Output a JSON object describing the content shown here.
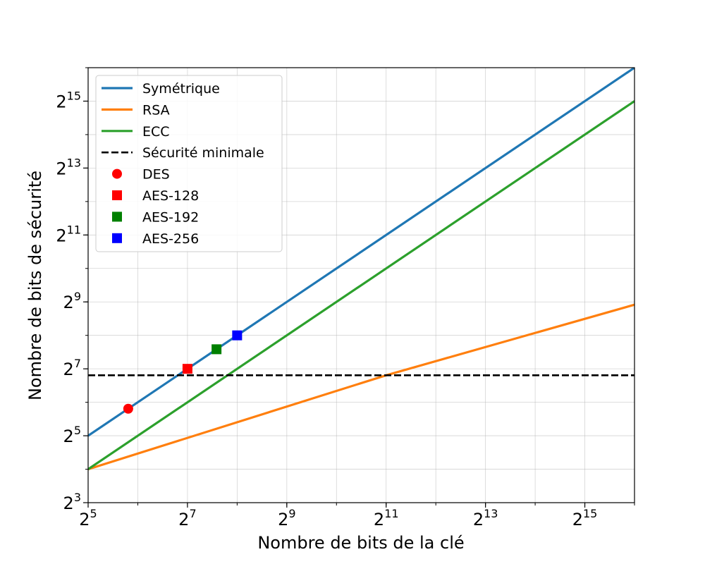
{
  "chart_data": {
    "type": "line",
    "xlabel": "Nombre de bits de la clé",
    "ylabel": "Nombre de bits de sécurité",
    "x_scale": "log2",
    "y_scale": "log2",
    "xlim": [
      32,
      65536
    ],
    "ylim": [
      8,
      65536
    ],
    "x_major_ticks": [
      {
        "base": "2",
        "exp": "5",
        "value": 32
      },
      {
        "base": "2",
        "exp": "7",
        "value": 128
      },
      {
        "base": "2",
        "exp": "9",
        "value": 512
      },
      {
        "base": "2",
        "exp": "11",
        "value": 2048
      },
      {
        "base": "2",
        "exp": "13",
        "value": 8192
      },
      {
        "base": "2",
        "exp": "15",
        "value": 32768
      }
    ],
    "y_major_ticks": [
      {
        "base": "2",
        "exp": "3",
        "value": 8
      },
      {
        "base": "2",
        "exp": "5",
        "value": 32
      },
      {
        "base": "2",
        "exp": "7",
        "value": 128
      },
      {
        "base": "2",
        "exp": "9",
        "value": 512
      },
      {
        "base": "2",
        "exp": "11",
        "value": 2048
      },
      {
        "base": "2",
        "exp": "13",
        "value": 8192
      },
      {
        "base": "2",
        "exp": "15",
        "value": 32768
      }
    ],
    "grid": true,
    "legend_position": "top-left",
    "series": [
      {
        "name": "Symétrique",
        "kind": "line",
        "color": "#1f77b4",
        "dash": "solid",
        "x": [
          32,
          65536
        ],
        "y": [
          32,
          65536
        ]
      },
      {
        "name": "RSA",
        "kind": "line",
        "color": "#ff7f0e",
        "dash": "solid",
        "x": [
          32,
          2048,
          65536
        ],
        "y": [
          16,
          112,
          483
        ]
      },
      {
        "name": "ECC",
        "kind": "line",
        "color": "#2ca02c",
        "dash": "solid",
        "x": [
          32,
          65536
        ],
        "y": [
          16,
          32768
        ]
      },
      {
        "name": "Sécurité minimale",
        "kind": "hline",
        "color": "#000000",
        "dash": "dashed",
        "y": 112
      },
      {
        "name": "DES",
        "kind": "point",
        "marker": "circle",
        "color": "#ff0000",
        "x": 56,
        "y": 56
      },
      {
        "name": "AES-128",
        "kind": "point",
        "marker": "square",
        "color": "#ff0000",
        "x": 128,
        "y": 128
      },
      {
        "name": "AES-192",
        "kind": "point",
        "marker": "square",
        "color": "#008000",
        "x": 192,
        "y": 192
      },
      {
        "name": "AES-256",
        "kind": "point",
        "marker": "square",
        "color": "#0000ff",
        "x": 256,
        "y": 256
      }
    ]
  }
}
